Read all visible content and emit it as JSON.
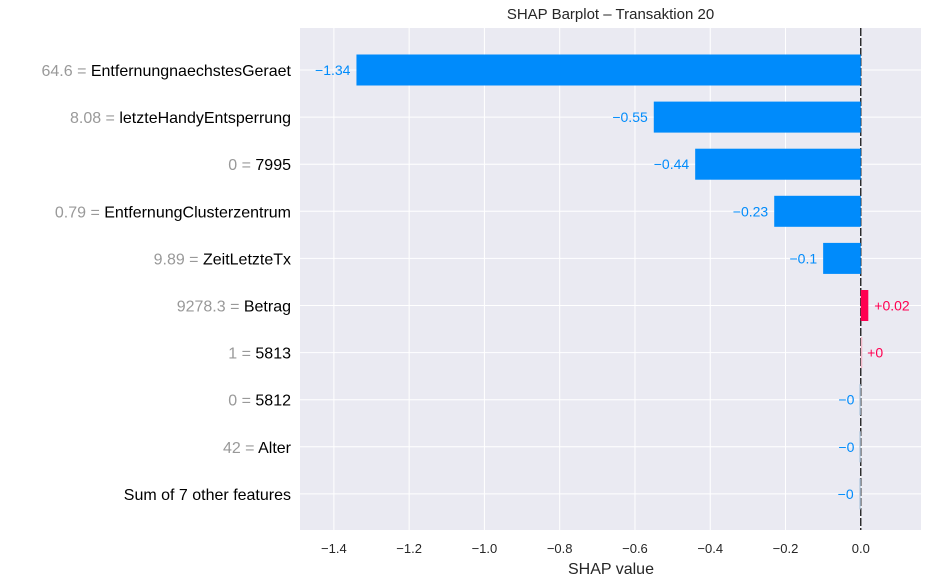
{
  "chart_data": {
    "type": "bar",
    "title": "SHAP Barplot – Transaktion 20",
    "xlabel": "SHAP value",
    "ylabel": "",
    "xlim": [
      -1.49,
      0.16
    ],
    "xticks": [
      -1.4,
      -1.2,
      -1.0,
      -0.8,
      -0.6,
      -0.4,
      -0.2,
      0.0
    ],
    "xtick_labels": [
      "−1.4",
      "−1.2",
      "−1.0",
      "−0.8",
      "−0.6",
      "−0.4",
      "−0.2",
      "0.0"
    ],
    "grid": true,
    "bars": [
      {
        "feature_value": "64.6",
        "feature": "EntfernungnaechstesGeraet",
        "value": -1.34,
        "label": "−1.34"
      },
      {
        "feature_value": "8.08",
        "feature": "letzteHandyEntsperrung",
        "value": -0.55,
        "label": "−0.55"
      },
      {
        "feature_value": "0",
        "feature": "7995",
        "value": -0.44,
        "label": "−0.44"
      },
      {
        "feature_value": "0.79",
        "feature": "EntfernungClusterzentrum",
        "value": -0.23,
        "label": "−0.23"
      },
      {
        "feature_value": "9.89",
        "feature": "ZeitLetzteTx",
        "value": -0.1,
        "label": "−0.1"
      },
      {
        "feature_value": "9278.3",
        "feature": "Betrag",
        "value": 0.02,
        "label": "+0.02"
      },
      {
        "feature_value": "1",
        "feature": "5813",
        "value": 0.001,
        "label": "+0"
      },
      {
        "feature_value": "0",
        "feature": "5812",
        "value": -0.001,
        "label": "−0"
      },
      {
        "feature_value": "42",
        "feature": "Alter",
        "value": -0.001,
        "label": "−0"
      },
      {
        "feature_value": "",
        "feature": "Sum of 7 other features",
        "value": -0.003,
        "label": "−0"
      }
    ],
    "colors": {
      "negative": "#008bfb",
      "positive": "#ff0051",
      "background": "#eaeaf2",
      "grid": "#ffffff",
      "feature_value_text": "#999999",
      "feature_name_text": "#000000",
      "axis_text": "#262626"
    }
  }
}
